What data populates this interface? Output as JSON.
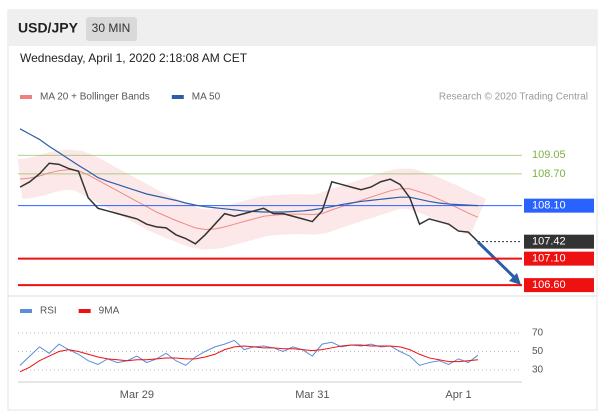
{
  "header": {
    "symbol": "USD/JPY",
    "interval": "30 MIN"
  },
  "chart_data": [
    {
      "type": "line",
      "subtitle": "Wednesday, April 1, 2020 2:18:08 AM CET",
      "source": "Research © 2020 Trading Central",
      "values": [
        108.45,
        108.55,
        108.7,
        108.9,
        108.88,
        108.8,
        108.75,
        108.25,
        108.05,
        108.0,
        107.95,
        107.9,
        107.85,
        107.75,
        107.7,
        107.68,
        107.55,
        107.48,
        107.38,
        107.55,
        107.75,
        107.95,
        107.9,
        107.95,
        108.0,
        108.05,
        107.95,
        107.95,
        107.9,
        107.85,
        107.8,
        108.0,
        108.55,
        108.5,
        108.45,
        108.4,
        108.45,
        108.55,
        108.6,
        108.5,
        108.25,
        107.75,
        107.85,
        107.8,
        107.75,
        107.62,
        107.6,
        107.42
      ],
      "color": "#333333",
      "series": [
        {
          "name": "MA 20 + Bollinger Bands",
          "color": "#f08080",
          "values": [
            108.6,
            108.62,
            108.66,
            108.72,
            108.76,
            108.78,
            108.76,
            108.68,
            108.58,
            108.48,
            108.38,
            108.28,
            108.18,
            108.08,
            107.98,
            107.9,
            107.82,
            107.75,
            107.68,
            107.65,
            107.66,
            107.7,
            107.75,
            107.8,
            107.85,
            107.9,
            107.92,
            107.93,
            107.94,
            107.94,
            107.93,
            107.95,
            108.02,
            108.08,
            108.14,
            108.2,
            108.26,
            108.32,
            108.38,
            108.42,
            108.42,
            108.36,
            108.3,
            108.22,
            108.14,
            108.05,
            107.96,
            107.88
          ]
        },
        {
          "name": "MA 50",
          "color": "#2c5ea8",
          "values": [
            109.55,
            109.45,
            109.35,
            109.22,
            109.1,
            108.98,
            108.86,
            108.75,
            108.63,
            108.56,
            108.5,
            108.44,
            108.38,
            108.32,
            108.28,
            108.24,
            108.2,
            108.15,
            108.11,
            108.08,
            108.06,
            108.04,
            108.02,
            108.0,
            107.99,
            107.98,
            107.98,
            107.98,
            107.99,
            108.0,
            108.02,
            108.05,
            108.08,
            108.12,
            108.15,
            108.18,
            108.2,
            108.22,
            108.24,
            108.26,
            108.26,
            108.22,
            108.18,
            108.15,
            108.13,
            108.12,
            108.11,
            108.1
          ]
        }
      ],
      "levels": [
        {
          "value": 109.05,
          "color": "#7cb342"
        },
        {
          "value": 108.7,
          "label": "108.70",
          "color": "#7cb342"
        },
        {
          "value": 108.1,
          "label": "108.10",
          "color": "#2962ff"
        },
        {
          "value": 107.42,
          "color": "#333333"
        },
        {
          "value": 107.1,
          "label": "107.10",
          "color": "#ee1111"
        },
        {
          "value": 106.6,
          "label": "106.60",
          "color": "#ee1111"
        }
      ],
      "ylim": [
        106.47,
        110.0
      ]
    },
    {
      "type": "line",
      "categories": [
        null,
        null,
        null,
        null,
        null,
        null,
        null,
        null,
        null,
        null,
        null,
        null,
        "Mar 29",
        null,
        null,
        null,
        null,
        null,
        null,
        null,
        null,
        null,
        null,
        null,
        null,
        null,
        null,
        null,
        null,
        null,
        "Mar 31",
        null,
        null,
        null,
        null,
        null,
        null,
        null,
        null,
        null,
        null,
        null,
        null,
        null,
        null,
        "Apr 1",
        null,
        null
      ],
      "series": [
        {
          "name": "RSI",
          "color": "#5b8dd9",
          "values": [
            35,
            45,
            55,
            48,
            58,
            52,
            47,
            40,
            36,
            42,
            38,
            40,
            45,
            38,
            42,
            48,
            40,
            35,
            44,
            50,
            55,
            58,
            62,
            52,
            55,
            56,
            54,
            50,
            55,
            52,
            45,
            58,
            60,
            55,
            57,
            56,
            58,
            55,
            56,
            50,
            45,
            35,
            38,
            40,
            36,
            42,
            38,
            46
          ]
        },
        {
          "name": "9MA",
          "color": "#ee1111",
          "values": [
            28,
            33,
            40,
            45,
            50,
            52,
            50,
            47,
            44,
            42,
            41,
            40,
            41,
            41,
            42,
            43,
            43,
            42,
            42,
            44,
            47,
            52,
            55,
            56,
            55,
            54,
            54,
            53,
            53,
            52,
            51,
            52,
            54,
            56,
            57,
            57,
            56,
            56,
            56,
            55,
            52,
            47,
            43,
            41,
            39,
            39,
            40,
            41
          ]
        }
      ],
      "ylim": [
        18,
        82
      ],
      "yticks": [
        30,
        50,
        70
      ],
      "grid": true
    }
  ]
}
